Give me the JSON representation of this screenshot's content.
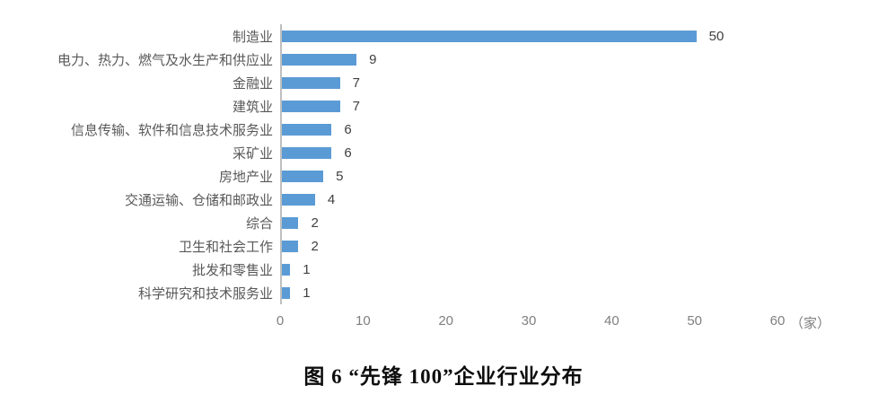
{
  "chart_data": {
    "type": "bar",
    "orientation": "horizontal",
    "categories": [
      "制造业",
      "电力、热力、燃气及水生产和供应业",
      "金融业",
      "建筑业",
      "信息传输、软件和信息技术服务业",
      "采矿业",
      "房地产业",
      "交通运输、仓储和邮政业",
      "综合",
      "卫生和社会工作",
      "批发和零售业",
      "科学研究和技术服务业"
    ],
    "values": [
      50,
      9,
      7,
      7,
      6,
      6,
      5,
      4,
      2,
      2,
      1,
      1
    ],
    "xlim": [
      0,
      60
    ],
    "x_ticks": [
      0,
      10,
      20,
      30,
      40,
      50,
      60
    ],
    "x_unit": "（家）",
    "grid": false,
    "legend": "none",
    "data_labels": true,
    "colors": {
      "bar": "#5b9bd5",
      "axis_line": "#bfbfbf",
      "category_label": "#595959",
      "value_label": "#404040",
      "tick_label": "#7f7f7f"
    }
  },
  "caption": {
    "text": "图 6  “先锋 100”企业行业分布"
  }
}
